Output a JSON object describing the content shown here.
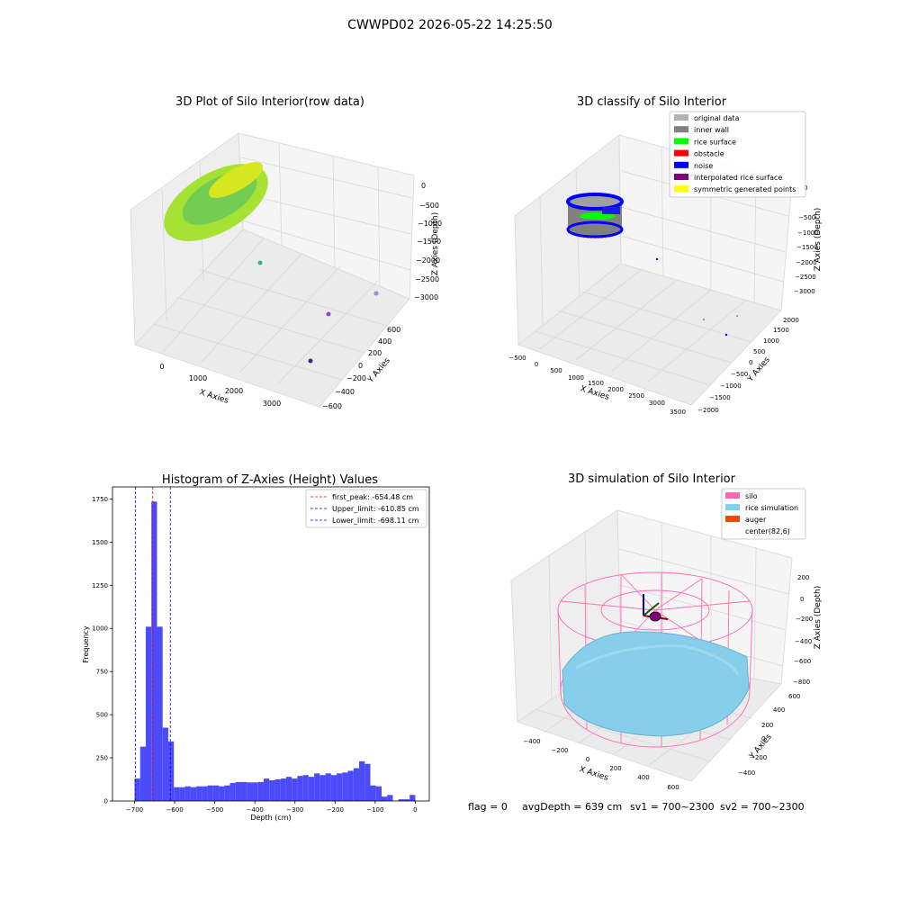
{
  "figure": {
    "suptitle": "CWWPD02 2026-05-22 14:25:50"
  },
  "colors": {
    "hist_bar": "#4b4bfb",
    "first_peak_line": "#ff0000",
    "limit_lines": "#0000ff",
    "silo": "#ff69b4",
    "rice": "#87ceeb",
    "auger": "#ff4500",
    "grid_pane": "#f2f2f2",
    "original_data": "#b3b3b3",
    "inner_wall": "#808080",
    "rice_surface": "#00ff00",
    "obstacle": "#ff0000",
    "noise": "#0000ff",
    "interpolated": "#800080",
    "symmetric": "#ffff00"
  },
  "panel_tl": {
    "title": "3D Plot of Silo Interior(row data)",
    "xlabel": "X Axies",
    "ylabel": "Y Axies",
    "zlabel": "Z Axies (Depth)",
    "xticks": [
      "0",
      "1000",
      "2000",
      "3000"
    ],
    "yticks": [
      "−600",
      "−400",
      "−200",
      "0",
      "200",
      "400",
      "600"
    ],
    "zticks": [
      "0",
      "−500",
      "−1000",
      "−1500",
      "−2000",
      "−2500",
      "−3000"
    ]
  },
  "panel_tr": {
    "title": "3D classify of Silo Interior",
    "xlabel": "X Axies",
    "ylabel": "Y Axies",
    "zlabel": "Z Axies (Depth)",
    "xticks": [
      "−500",
      "0",
      "500",
      "1000",
      "1500",
      "2000",
      "2500",
      "3000",
      "3500"
    ],
    "yticks": [
      "−2000",
      "−1500",
      "−1000",
      "−500",
      "0",
      "500",
      "1000",
      "1500",
      "2000"
    ],
    "zticks": [
      "0",
      "−500",
      "−1000",
      "−1500",
      "−2000",
      "−2500",
      "−3000"
    ],
    "legend": [
      {
        "label": "original data",
        "color": "#b3b3b3"
      },
      {
        "label": "inner wall",
        "color": "#808080"
      },
      {
        "label": "rice surface",
        "color": "#00ff00"
      },
      {
        "label": "obstacle",
        "color": "#ff0000"
      },
      {
        "label": "noise",
        "color": "#0000ff"
      },
      {
        "label": "interpolated rice surface",
        "color": "#800080"
      },
      {
        "label": "symmetric generated points",
        "color": "#ffff00"
      }
    ]
  },
  "panel_br": {
    "title": "3D simulation of Silo Interior",
    "xlabel": "X Axies",
    "ylabel": "Y Axies",
    "zlabel": "Z Axies (Depth)",
    "xticks": [
      "−400",
      "−200",
      "0",
      "200",
      "400",
      "600"
    ],
    "yticks": [
      "−400",
      "−200",
      "0",
      "200",
      "400",
      "600"
    ],
    "zticks": [
      "200",
      "0",
      "−200",
      "−400",
      "−600",
      "−800"
    ],
    "legend": [
      {
        "label": "silo",
        "color": "#ff69b4"
      },
      {
        "label": "rice simulation",
        "color": "#87ceeb"
      },
      {
        "label": "auger",
        "color": "#ff4500"
      },
      {
        "label": "center(82,6)",
        "color": ""
      }
    ],
    "status": {
      "flag": "flag = 0",
      "avg_depth": "avgDepth = 639 cm",
      "sv1": "sv1 = 700~2300",
      "sv2": "sv2 = 700~2300"
    }
  },
  "chart_data": {
    "type": "bar",
    "title": "Histogram of Z-Axies (Height) Values",
    "xlabel": "Depth (cm)",
    "ylabel": "Frequency",
    "xlim": [
      -755,
      35
    ],
    "ylim": [
      0,
      1820
    ],
    "xticks": [
      -700,
      -600,
      -500,
      -400,
      -300,
      -200,
      -100,
      0
    ],
    "yticks": [
      0,
      250,
      500,
      750,
      1000,
      1250,
      1500,
      1750
    ],
    "bin_width": 14,
    "bin_starts": [
      -700,
      -686,
      -672,
      -658,
      -644,
      -630,
      -616,
      -602,
      -588,
      -574,
      -560,
      -546,
      -532,
      -518,
      -504,
      -490,
      -476,
      -462,
      -448,
      -434,
      -420,
      -406,
      -392,
      -378,
      -364,
      -350,
      -336,
      -322,
      -308,
      -294,
      -280,
      -266,
      -252,
      -238,
      -224,
      -210,
      -196,
      -182,
      -168,
      -154,
      -140,
      -126,
      -112,
      -98,
      -84,
      -70,
      -56,
      -42,
      -28,
      -14
    ],
    "values": [
      130,
      315,
      1010,
      1735,
      1010,
      425,
      345,
      80,
      80,
      85,
      80,
      85,
      85,
      90,
      90,
      85,
      90,
      105,
      110,
      110,
      108,
      108,
      110,
      130,
      120,
      125,
      130,
      140,
      130,
      145,
      150,
      140,
      160,
      150,
      160,
      150,
      160,
      165,
      175,
      190,
      230,
      215,
      90,
      85,
      25,
      35,
      0,
      10,
      10,
      35
    ],
    "reference_lines": [
      {
        "label": "first_peak: -654.48 cm",
        "x": -654.48,
        "color": "#ff0000"
      },
      {
        "label": "Upper_limit: -610.85 cm",
        "x": -610.85,
        "color": "#0000ff"
      },
      {
        "label": "Lower_limit: -698.11 cm",
        "x": -698.11,
        "color": "#0000ff"
      }
    ]
  }
}
